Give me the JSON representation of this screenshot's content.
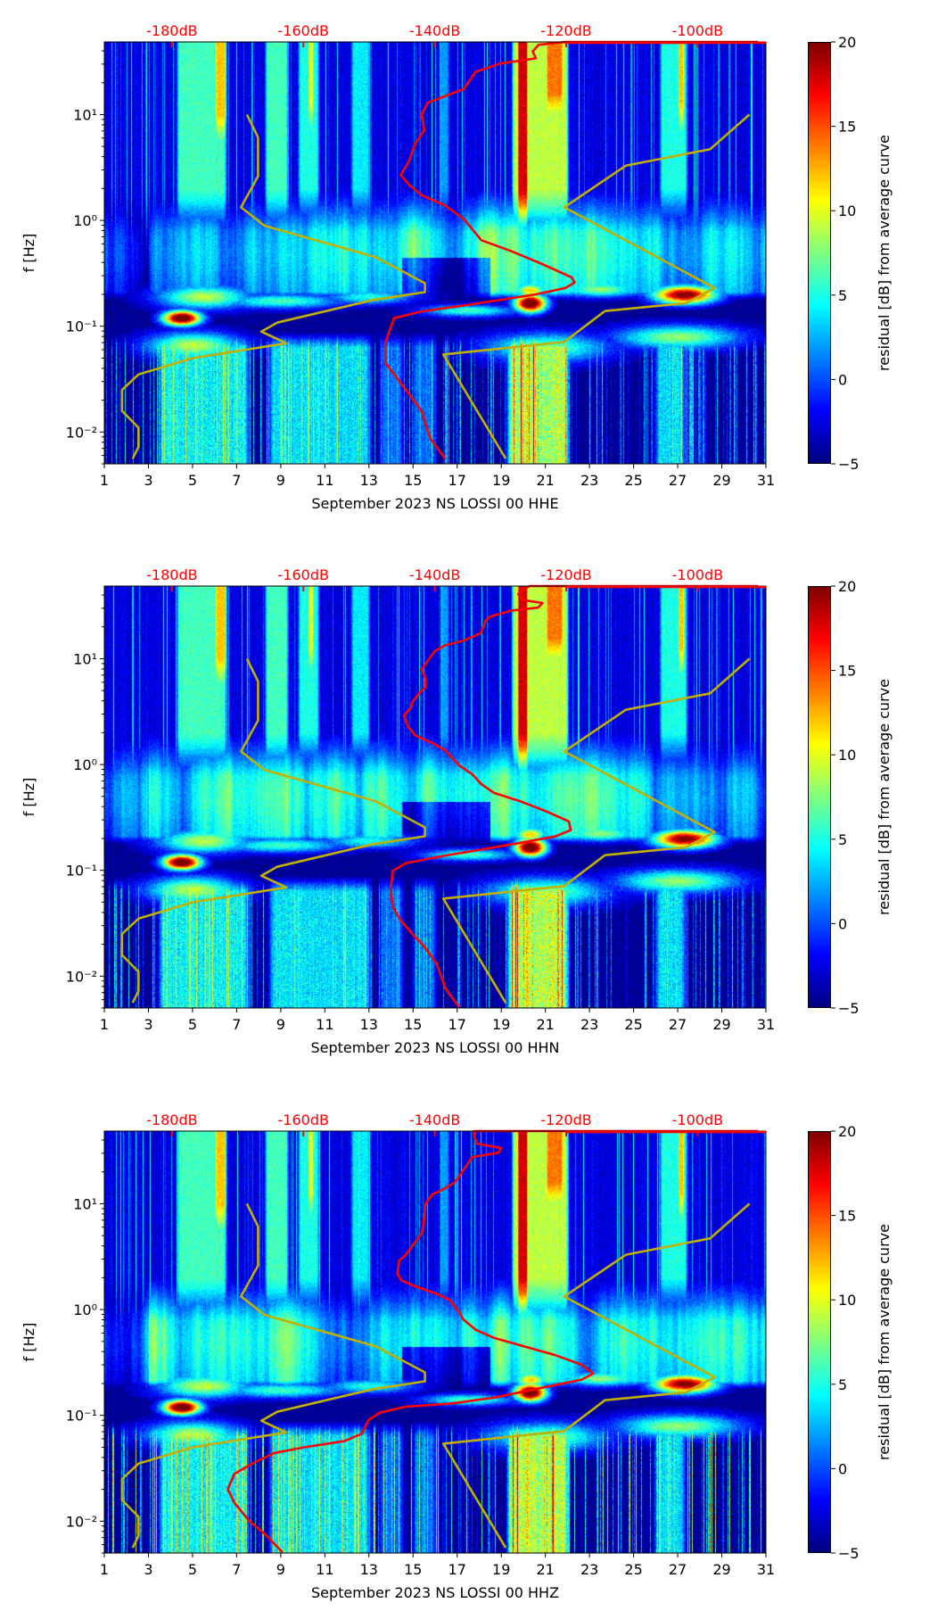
{
  "figure": {
    "colorbar": {
      "label": "residual [dB] from average curve",
      "range": [
        -5,
        20
      ],
      "ticks": [
        -5,
        0,
        5,
        10,
        15,
        20
      ],
      "colormap": "jet"
    },
    "colors": {
      "psd_curve": "#ff0000",
      "noise_model": "#c2b000"
    }
  },
  "reference_curves": {
    "NLNM": [
      [
        -168.6,
        10
      ],
      [
        -166.9,
        6.1
      ],
      [
        -166.9,
        2.6
      ],
      [
        -169.5,
        1.33
      ],
      [
        -165.9,
        0.89
      ],
      [
        -149.0,
        0.45
      ],
      [
        -141.5,
        0.255
      ],
      [
        -141.5,
        0.21
      ],
      [
        -149.4,
        0.177
      ],
      [
        -164.0,
        0.108
      ],
      [
        -166.4,
        0.089
      ],
      [
        -162.6,
        0.069
      ],
      [
        -165.9,
        0.064
      ],
      [
        -176.8,
        0.05
      ],
      [
        -185.1,
        0.035
      ],
      [
        -187.6,
        0.025
      ],
      [
        -187.6,
        0.0158
      ],
      [
        -185.1,
        0.011
      ],
      [
        -185.1,
        0.0072
      ],
      [
        -186.0,
        0.0056
      ]
    ],
    "NHNM": [
      [
        -92.1,
        10
      ],
      [
        -98.1,
        4.7
      ],
      [
        -110.9,
        3.3
      ],
      [
        -120.3,
        1.33
      ],
      [
        -97.4,
        0.23
      ],
      [
        -101.8,
        0.165
      ],
      [
        -114.1,
        0.139
      ],
      [
        -120.3,
        0.071
      ],
      [
        -138.7,
        0.054
      ],
      [
        -129.2,
        0.0056
      ]
    ]
  },
  "chart_data": [
    {
      "type": "heatmap",
      "xlabel": "September 2023 NS LOSSI 00 HHE",
      "ylabel": "f [Hz]",
      "xlim": [
        1,
        31
      ],
      "x_ticks": [
        1,
        3,
        5,
        7,
        9,
        11,
        13,
        15,
        17,
        19,
        21,
        23,
        25,
        27,
        29,
        31
      ],
      "ylim": [
        0.005,
        48.6
      ],
      "yscale": "log",
      "y_tick_exponents": [
        -2,
        -1,
        0,
        1
      ],
      "top_axis": {
        "xlim_dB": [
          -190.3,
          -89.6
        ],
        "ticks": [
          -180,
          -160,
          -140,
          -120,
          -100
        ],
        "labels": [
          "-180dB",
          "-160dB",
          "-140dB",
          "-120dB",
          "-100dB"
        ]
      },
      "series": [
        {
          "name": "PSD",
          "unit": "dB vs Hz",
          "points": [
            [
              -90.8,
              48.6
            ],
            [
              -120.1,
              48.6
            ],
            [
              -124.2,
              45.7
            ],
            [
              -125.1,
              39.5
            ],
            [
              -124.6,
              34
            ],
            [
              -130.1,
              30.3
            ],
            [
              -133.8,
              25.3
            ],
            [
              -135.6,
              17.4
            ],
            [
              -138.4,
              15
            ],
            [
              -141.1,
              12.9
            ],
            [
              -142.0,
              10
            ],
            [
              -141.6,
              7.1
            ],
            [
              -143.0,
              5.3
            ],
            [
              -143.9,
              3.65
            ],
            [
              -145.2,
              2.7
            ],
            [
              -143.9,
              2.16
            ],
            [
              -142.0,
              1.73
            ],
            [
              -138.4,
              1.38
            ],
            [
              -135.6,
              1.03
            ],
            [
              -132.9,
              0.65
            ],
            [
              -128.3,
              0.51
            ],
            [
              -123.8,
              0.39
            ],
            [
              -119.2,
              0.29
            ],
            [
              -118.7,
              0.26
            ],
            [
              -120.1,
              0.23
            ],
            [
              -124.6,
              0.2
            ],
            [
              -134.7,
              0.16
            ],
            [
              -142.0,
              0.138
            ],
            [
              -146.2,
              0.119
            ],
            [
              -147.5,
              0.071
            ],
            [
              -147.5,
              0.045
            ],
            [
              -144.8,
              0.027
            ],
            [
              -142.0,
              0.0158
            ],
            [
              -140.7,
              0.0087
            ],
            [
              -138.4,
              0.0056
            ]
          ]
        }
      ]
    },
    {
      "type": "heatmap",
      "xlabel": "September 2023 NS LOSSI 00 HHN",
      "ylabel": "f [Hz]",
      "xlim": [
        1,
        31
      ],
      "x_ticks": [
        1,
        3,
        5,
        7,
        9,
        11,
        13,
        15,
        17,
        19,
        21,
        23,
        25,
        27,
        29,
        31
      ],
      "ylim": [
        0.005,
        48.6
      ],
      "yscale": "log",
      "y_tick_exponents": [
        -2,
        -1,
        0,
        1
      ],
      "top_axis": {
        "xlim_dB": [
          -190.3,
          -89.6
        ],
        "ticks": [
          -180,
          -160,
          -140,
          -120,
          -100
        ],
        "labels": [
          "-180dB",
          "-160dB",
          "-140dB",
          "-120dB",
          "-100dB"
        ]
      },
      "series": [
        {
          "name": "PSD",
          "unit": "dB vs Hz",
          "points": [
            [
              -90.8,
              48.6
            ],
            [
              -125.6,
              48.6
            ],
            [
              -127.3,
              40.8
            ],
            [
              -126.6,
              35.8
            ],
            [
              -123.6,
              33.6
            ],
            [
              -124.3,
              30.4
            ],
            [
              -128.3,
              28.5
            ],
            [
              -131.6,
              25
            ],
            [
              -132.3,
              22.7
            ],
            [
              -133,
              17.4
            ],
            [
              -135.7,
              14.8
            ],
            [
              -138.4,
              13.4
            ],
            [
              -140,
              11.8
            ],
            [
              -141,
              9.7
            ],
            [
              -142,
              7.9
            ],
            [
              -141.4,
              6.5
            ],
            [
              -141.4,
              5.4
            ],
            [
              -142.4,
              4.7
            ],
            [
              -143.4,
              3.9
            ],
            [
              -143.7,
              3.4
            ],
            [
              -144.7,
              2.9
            ],
            [
              -144.1,
              2.3
            ],
            [
              -143,
              1.89
            ],
            [
              -140.4,
              1.6
            ],
            [
              -138.4,
              1.36
            ],
            [
              -136.3,
              0.98
            ],
            [
              -134.3,
              0.81
            ],
            [
              -133,
              0.66
            ],
            [
              -131,
              0.54
            ],
            [
              -127,
              0.45
            ],
            [
              -123,
              0.36
            ],
            [
              -119.6,
              0.29
            ],
            [
              -119.3,
              0.24
            ],
            [
              -121.6,
              0.21
            ],
            [
              -127.6,
              0.179
            ],
            [
              -134.3,
              0.152
            ],
            [
              -138.4,
              0.138
            ],
            [
              -144.4,
              0.117
            ],
            [
              -146.4,
              0.099
            ],
            [
              -146.7,
              0.067
            ],
            [
              -146.4,
              0.045
            ],
            [
              -145.1,
              0.033
            ],
            [
              -143,
              0.0236
            ],
            [
              -141.7,
              0.0194
            ],
            [
              -139.7,
              0.0131
            ],
            [
              -138.4,
              0.0077
            ],
            [
              -136.3,
              0.0051
            ]
          ]
        }
      ]
    },
    {
      "type": "heatmap",
      "xlabel": "September 2023 NS LOSSI 00 HHZ",
      "ylabel": "f [Hz]",
      "xlim": [
        1,
        31
      ],
      "x_ticks": [
        1,
        3,
        5,
        7,
        9,
        11,
        13,
        15,
        17,
        19,
        21,
        23,
        25,
        27,
        29,
        31
      ],
      "ylim": [
        0.005,
        48.6
      ],
      "yscale": "log",
      "y_tick_exponents": [
        -2,
        -1,
        0,
        1
      ],
      "top_axis": {
        "xlim_dB": [
          -190.3,
          -89.6
        ],
        "ticks": [
          -180,
          -160,
          -140,
          -120,
          -100
        ],
        "labels": [
          "-180dB",
          "-160dB",
          "-140dB",
          "-120dB",
          "-100dB"
        ]
      },
      "series": [
        {
          "name": "PSD",
          "unit": "dB vs Hz",
          "points": [
            [
              -90.8,
              48.6
            ],
            [
              -134,
              48.6
            ],
            [
              -134,
              43
            ],
            [
              -133.7,
              39.5
            ],
            [
              -133.7,
              37
            ],
            [
              -129.9,
              33.6
            ],
            [
              -130.3,
              30.4
            ],
            [
              -134.3,
              27.6
            ],
            [
              -135.7,
              20.5
            ],
            [
              -137,
              15.8
            ],
            [
              -139,
              13.4
            ],
            [
              -140.4,
              12.2
            ],
            [
              -141.4,
              10
            ],
            [
              -141.7,
              6.3
            ],
            [
              -142,
              5.2
            ],
            [
              -143.4,
              4
            ],
            [
              -144.4,
              3.3
            ],
            [
              -145.4,
              2.9
            ],
            [
              -145.7,
              2.2
            ],
            [
              -145.1,
              1.89
            ],
            [
              -143,
              1.66
            ],
            [
              -139.7,
              1.41
            ],
            [
              -137.7,
              1.23
            ],
            [
              -136.3,
              0.95
            ],
            [
              -135.7,
              0.81
            ],
            [
              -133.7,
              0.64
            ],
            [
              -131,
              0.54
            ],
            [
              -127,
              0.46
            ],
            [
              -121.6,
              0.37
            ],
            [
              -117.6,
              0.3
            ],
            [
              -115.9,
              0.248
            ],
            [
              -117.6,
              0.218
            ],
            [
              -124.3,
              0.179
            ],
            [
              -131,
              0.147
            ],
            [
              -137.7,
              0.129
            ],
            [
              -144.4,
              0.121
            ],
            [
              -148.4,
              0.106
            ],
            [
              -150.1,
              0.09
            ],
            [
              -151.1,
              0.067
            ],
            [
              -153.8,
              0.057
            ],
            [
              -159.8,
              0.05
            ],
            [
              -164.5,
              0.044
            ],
            [
              -167.8,
              0.035
            ],
            [
              -170.5,
              0.028
            ],
            [
              -171.5,
              0.02
            ],
            [
              -170.5,
              0.0149
            ],
            [
              -168.2,
              0.01
            ],
            [
              -165.8,
              0.0075
            ],
            [
              -163.2,
              0.0051
            ]
          ]
        }
      ]
    }
  ]
}
